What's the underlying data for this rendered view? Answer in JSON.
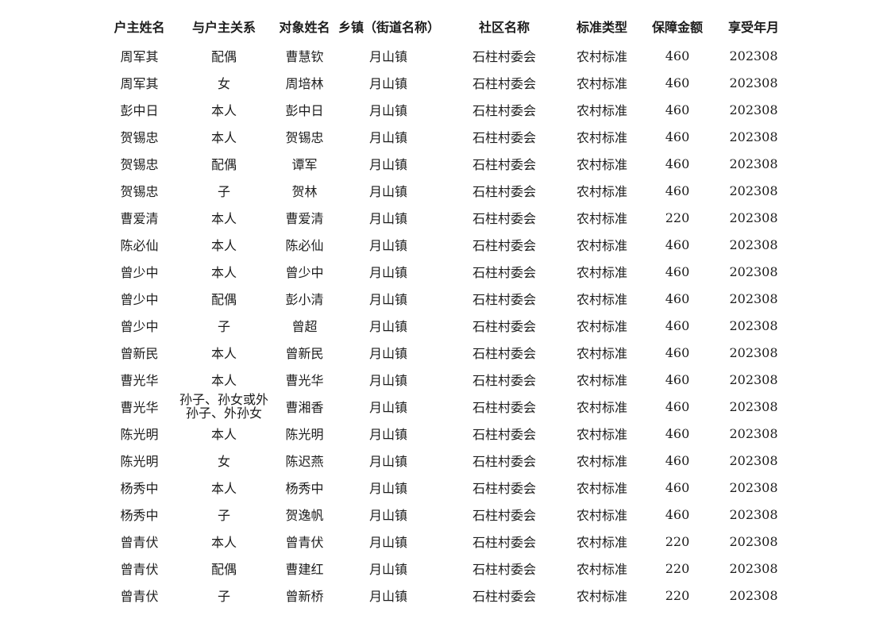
{
  "page": {
    "background_color": "#ffffff",
    "text_color": "#1c1c1c"
  },
  "table": {
    "columns": [
      "户主姓名",
      "与户主关系",
      "对象姓名",
      "乡镇（街道名称）",
      "社区名称",
      "标准类型",
      "保障金额",
      "享受年月"
    ],
    "rows": [
      [
        "周军其",
        "配偶",
        "曹慧钦",
        "月山镇",
        "石柱村委会",
        "农村标准",
        "460",
        "202308"
      ],
      [
        "周军其",
        "女",
        "周培林",
        "月山镇",
        "石柱村委会",
        "农村标准",
        "460",
        "202308"
      ],
      [
        "彭中日",
        "本人",
        "彭中日",
        "月山镇",
        "石柱村委会",
        "农村标准",
        "460",
        "202308"
      ],
      [
        "贺锡忠",
        "本人",
        "贺锡忠",
        "月山镇",
        "石柱村委会",
        "农村标准",
        "460",
        "202308"
      ],
      [
        "贺锡忠",
        "配偶",
        "谭军",
        "月山镇",
        "石柱村委会",
        "农村标准",
        "460",
        "202308"
      ],
      [
        "贺锡忠",
        "子",
        "贺林",
        "月山镇",
        "石柱村委会",
        "农村标准",
        "460",
        "202308"
      ],
      [
        "曹爱清",
        "本人",
        "曹爱清",
        "月山镇",
        "石柱村委会",
        "农村标准",
        "220",
        "202308"
      ],
      [
        "陈必仙",
        "本人",
        "陈必仙",
        "月山镇",
        "石柱村委会",
        "农村标准",
        "460",
        "202308"
      ],
      [
        "曾少中",
        "本人",
        "曾少中",
        "月山镇",
        "石柱村委会",
        "农村标准",
        "460",
        "202308"
      ],
      [
        "曾少中",
        "配偶",
        "彭小清",
        "月山镇",
        "石柱村委会",
        "农村标准",
        "460",
        "202308"
      ],
      [
        "曾少中",
        "子",
        "曾超",
        "月山镇",
        "石柱村委会",
        "农村标准",
        "460",
        "202308"
      ],
      [
        "曾新民",
        "本人",
        "曾新民",
        "月山镇",
        "石柱村委会",
        "农村标准",
        "460",
        "202308"
      ],
      [
        "曹光华",
        "本人",
        "曹光华",
        "月山镇",
        "石柱村委会",
        "农村标准",
        "460",
        "202308"
      ],
      [
        "曹光华",
        "孙子、孙女或外孙子、外孙女",
        "曹湘香",
        "月山镇",
        "石柱村委会",
        "农村标准",
        "460",
        "202308"
      ],
      [
        "陈光明",
        "本人",
        "陈光明",
        "月山镇",
        "石柱村委会",
        "农村标准",
        "460",
        "202308"
      ],
      [
        "陈光明",
        "女",
        "陈迟燕",
        "月山镇",
        "石柱村委会",
        "农村标准",
        "460",
        "202308"
      ],
      [
        "杨秀中",
        "本人",
        "杨秀中",
        "月山镇",
        "石柱村委会",
        "农村标准",
        "460",
        "202308"
      ],
      [
        "杨秀中",
        "子",
        "贺逸帆",
        "月山镇",
        "石柱村委会",
        "农村标准",
        "460",
        "202308"
      ],
      [
        "曾青伏",
        "本人",
        "曾青伏",
        "月山镇",
        "石柱村委会",
        "农村标准",
        "220",
        "202308"
      ],
      [
        "曾青伏",
        "配偶",
        "曹建红",
        "月山镇",
        "石柱村委会",
        "农村标准",
        "220",
        "202308"
      ],
      [
        "曾青伏",
        "子",
        "曾新桥",
        "月山镇",
        "石柱村委会",
        "农村标准",
        "220",
        "202308"
      ]
    ]
  }
}
